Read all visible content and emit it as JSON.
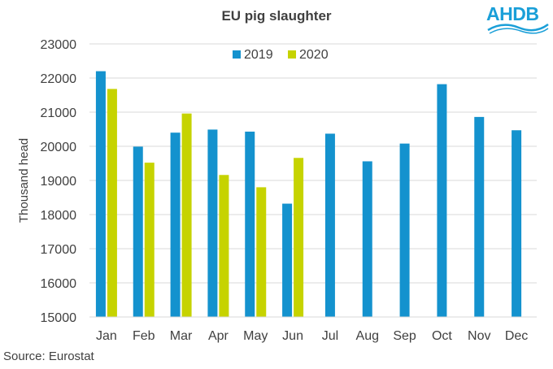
{
  "chart_data": {
    "type": "bar",
    "title": "EU pig slaughter",
    "xlabel": "",
    "ylabel": "Thousand head",
    "ylim": [
      15000,
      23000
    ],
    "yticks": [
      15000,
      16000,
      17000,
      18000,
      19000,
      20000,
      21000,
      22000,
      23000
    ],
    "categories": [
      "Jan",
      "Feb",
      "Mar",
      "Apr",
      "May",
      "Jun",
      "Jul",
      "Aug",
      "Sep",
      "Oct",
      "Nov",
      "Dec"
    ],
    "series": [
      {
        "name": "2019",
        "color": "#1492ce",
        "values": [
          22200,
          19990,
          20400,
          20490,
          20430,
          18320,
          20370,
          19560,
          20080,
          21820,
          20860,
          20470
        ]
      },
      {
        "name": "2020",
        "color": "#c6d300",
        "values": [
          21680,
          19520,
          20960,
          19160,
          18800,
          19660,
          null,
          null,
          null,
          null,
          null,
          null
        ]
      }
    ],
    "legend_position": "top-center",
    "grid": true
  },
  "source": "Source: Eurostat",
  "logo": {
    "text": "AHDB",
    "color": "#1a9fd8"
  }
}
